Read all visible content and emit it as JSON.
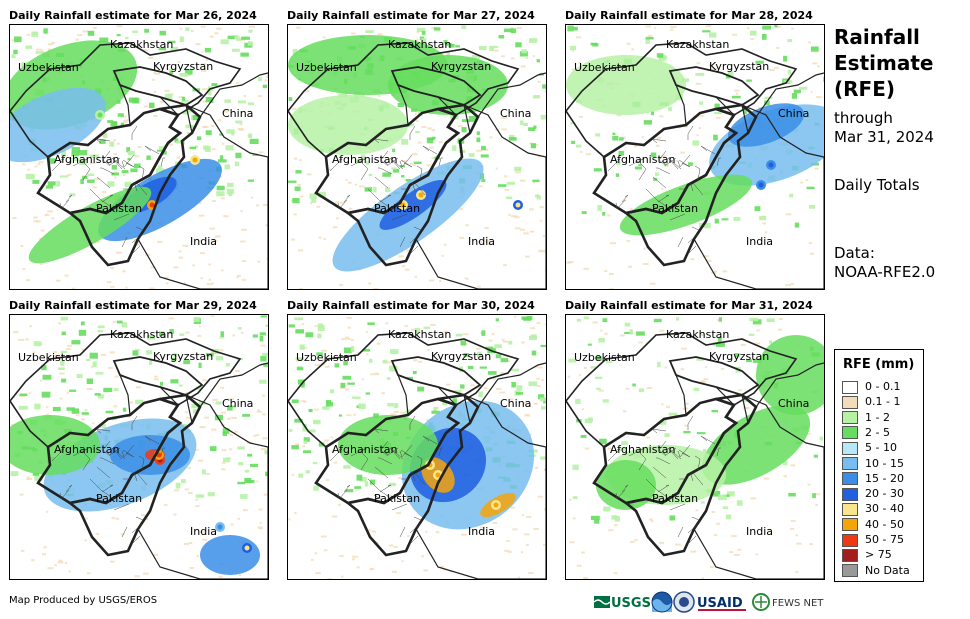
{
  "panels": [
    {
      "title": "Daily Rainfall estimate for Mar 26, 2024",
      "intensity": 1.0,
      "extent": 0.8
    },
    {
      "title": "Daily Rainfall estimate for Mar 27, 2024",
      "intensity": 0.85,
      "extent": 0.75
    },
    {
      "title": "Daily Rainfall estimate for Mar 28, 2024",
      "intensity": 0.5,
      "extent": 0.5
    },
    {
      "title": "Daily Rainfall estimate for Mar 29, 2024",
      "intensity": 0.9,
      "extent": 0.7
    },
    {
      "title": "Daily Rainfall estimate for Mar 30, 2024",
      "intensity": 1.0,
      "extent": 0.75
    },
    {
      "title": "Daily Rainfall estimate for Mar 31, 2024",
      "intensity": 0.4,
      "extent": 0.45
    }
  ],
  "map_labels": {
    "kazakhstan": "Kazakhstan",
    "uzbekistan": "Uzbekistan",
    "kyrgyzstan": "Kyrgyzstan",
    "china": "China",
    "afghanistan": "Afghanistan",
    "pakistan": "Pakistan",
    "india": "India"
  },
  "side": {
    "title": "Rainfall Estimate (RFE)",
    "through_label": "through",
    "through_date": "Mar 31, 2024",
    "totals": "Daily Totals",
    "data_label": "Data:",
    "data_source": "NOAA-RFE2.0"
  },
  "legend": {
    "title": "RFE (mm)",
    "items": [
      {
        "label": "0 - 0.1",
        "color": "#ffffff"
      },
      {
        "label": "0.1 - 1",
        "color": "#f3dcb9"
      },
      {
        "label": "1 - 2",
        "color": "#b6f1a6"
      },
      {
        "label": "2 - 5",
        "color": "#66dd5e"
      },
      {
        "label": "5 - 10",
        "color": "#b8e8f8"
      },
      {
        "label": "10 - 15",
        "color": "#78bdf0"
      },
      {
        "label": "15 - 20",
        "color": "#3a8ee6"
      },
      {
        "label": "20 - 30",
        "color": "#1f5fe0"
      },
      {
        "label": "30 - 40",
        "color": "#f8e58c"
      },
      {
        "label": "40 - 50",
        "color": "#f5a40a"
      },
      {
        "label": "50 - 75",
        "color": "#ee3a12"
      },
      {
        "label": "> 75",
        "color": "#a31d1d"
      },
      {
        "label": "No Data",
        "color": "#999999"
      }
    ]
  },
  "credit": "Map Produced by USGS/EROS",
  "logos": {
    "usgs": "USGS",
    "usaid": "USAID",
    "fewsnet": "FEWS NET"
  }
}
